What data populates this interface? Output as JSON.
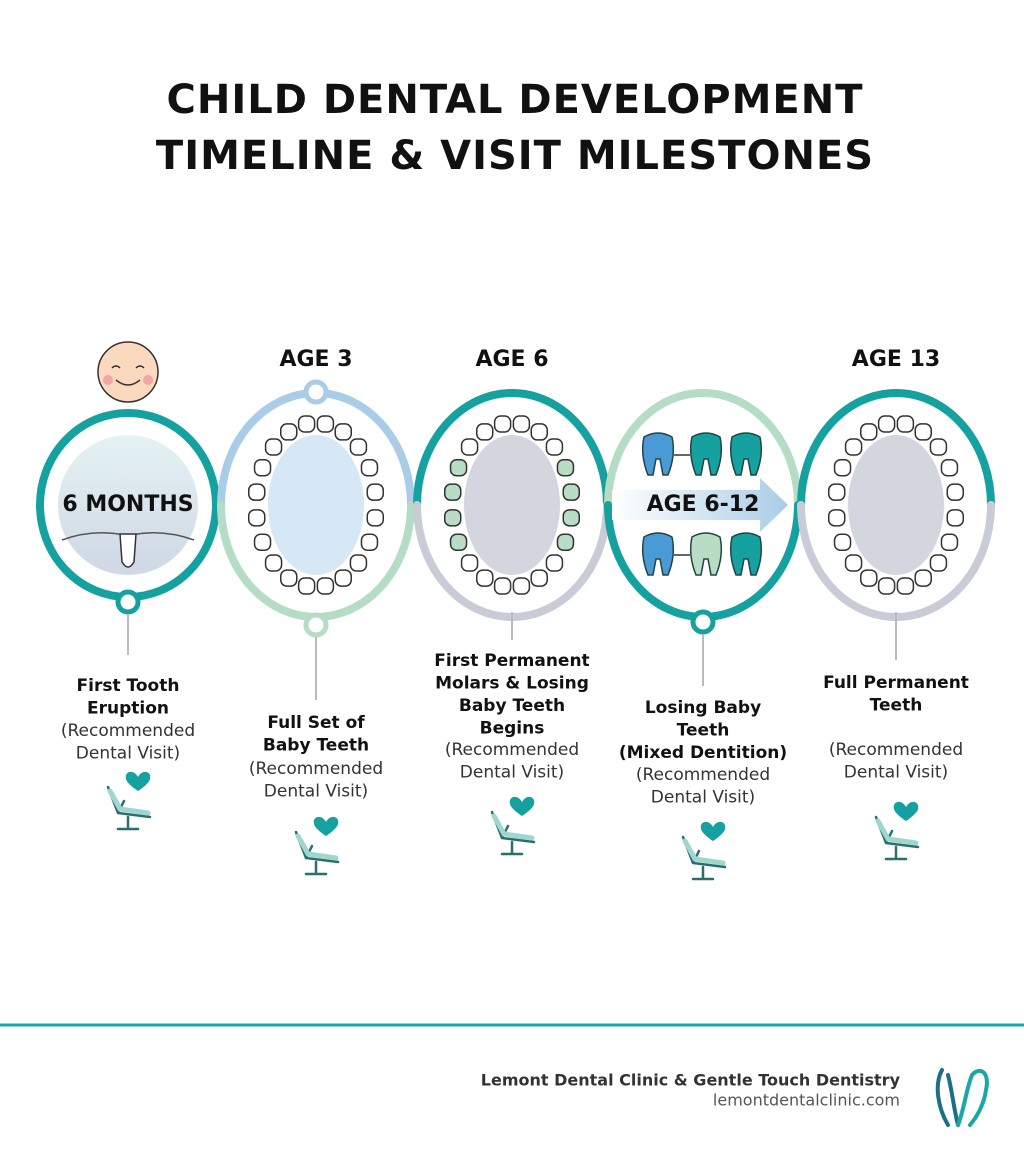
{
  "title": [
    "CHILD DENTAL DEVELOPMENT",
    "TIMELINE & VISIT MILESTONES"
  ],
  "stages": [
    {
      "label": "6 MONTHS",
      "milestone": [
        "First Tooth",
        "Eruption"
      ],
      "note": [
        "(Recommended",
        "Dental Visit)"
      ]
    },
    {
      "label": "AGE 3",
      "milestone": [
        "Full Set of",
        "Baby Teeth"
      ],
      "note": [
        "(Recommended",
        "Dental Visit)"
      ]
    },
    {
      "label": "AGE 6",
      "milestone": [
        "First Permanent",
        "Molars & Losing",
        "Baby Teeth",
        "Begins"
      ],
      "note": [
        "(Recommended",
        "Dental Visit)"
      ]
    },
    {
      "label": "AGE 6-12",
      "milestone": [
        "Losing Baby",
        "Teeth",
        "(Mixed Dentition)"
      ],
      "note": [
        "(Recommended",
        "Dental Visit)"
      ]
    },
    {
      "label": "AGE 13",
      "milestone": [
        "Full Permanent",
        "Teeth"
      ],
      "note": [
        "(Recommended",
        "Dental Visit)"
      ]
    }
  ],
  "footer": {
    "clinic": "Lemont Dental Clinic & Gentle Touch Dentistry",
    "website": "lemontdentalclinic.com"
  }
}
